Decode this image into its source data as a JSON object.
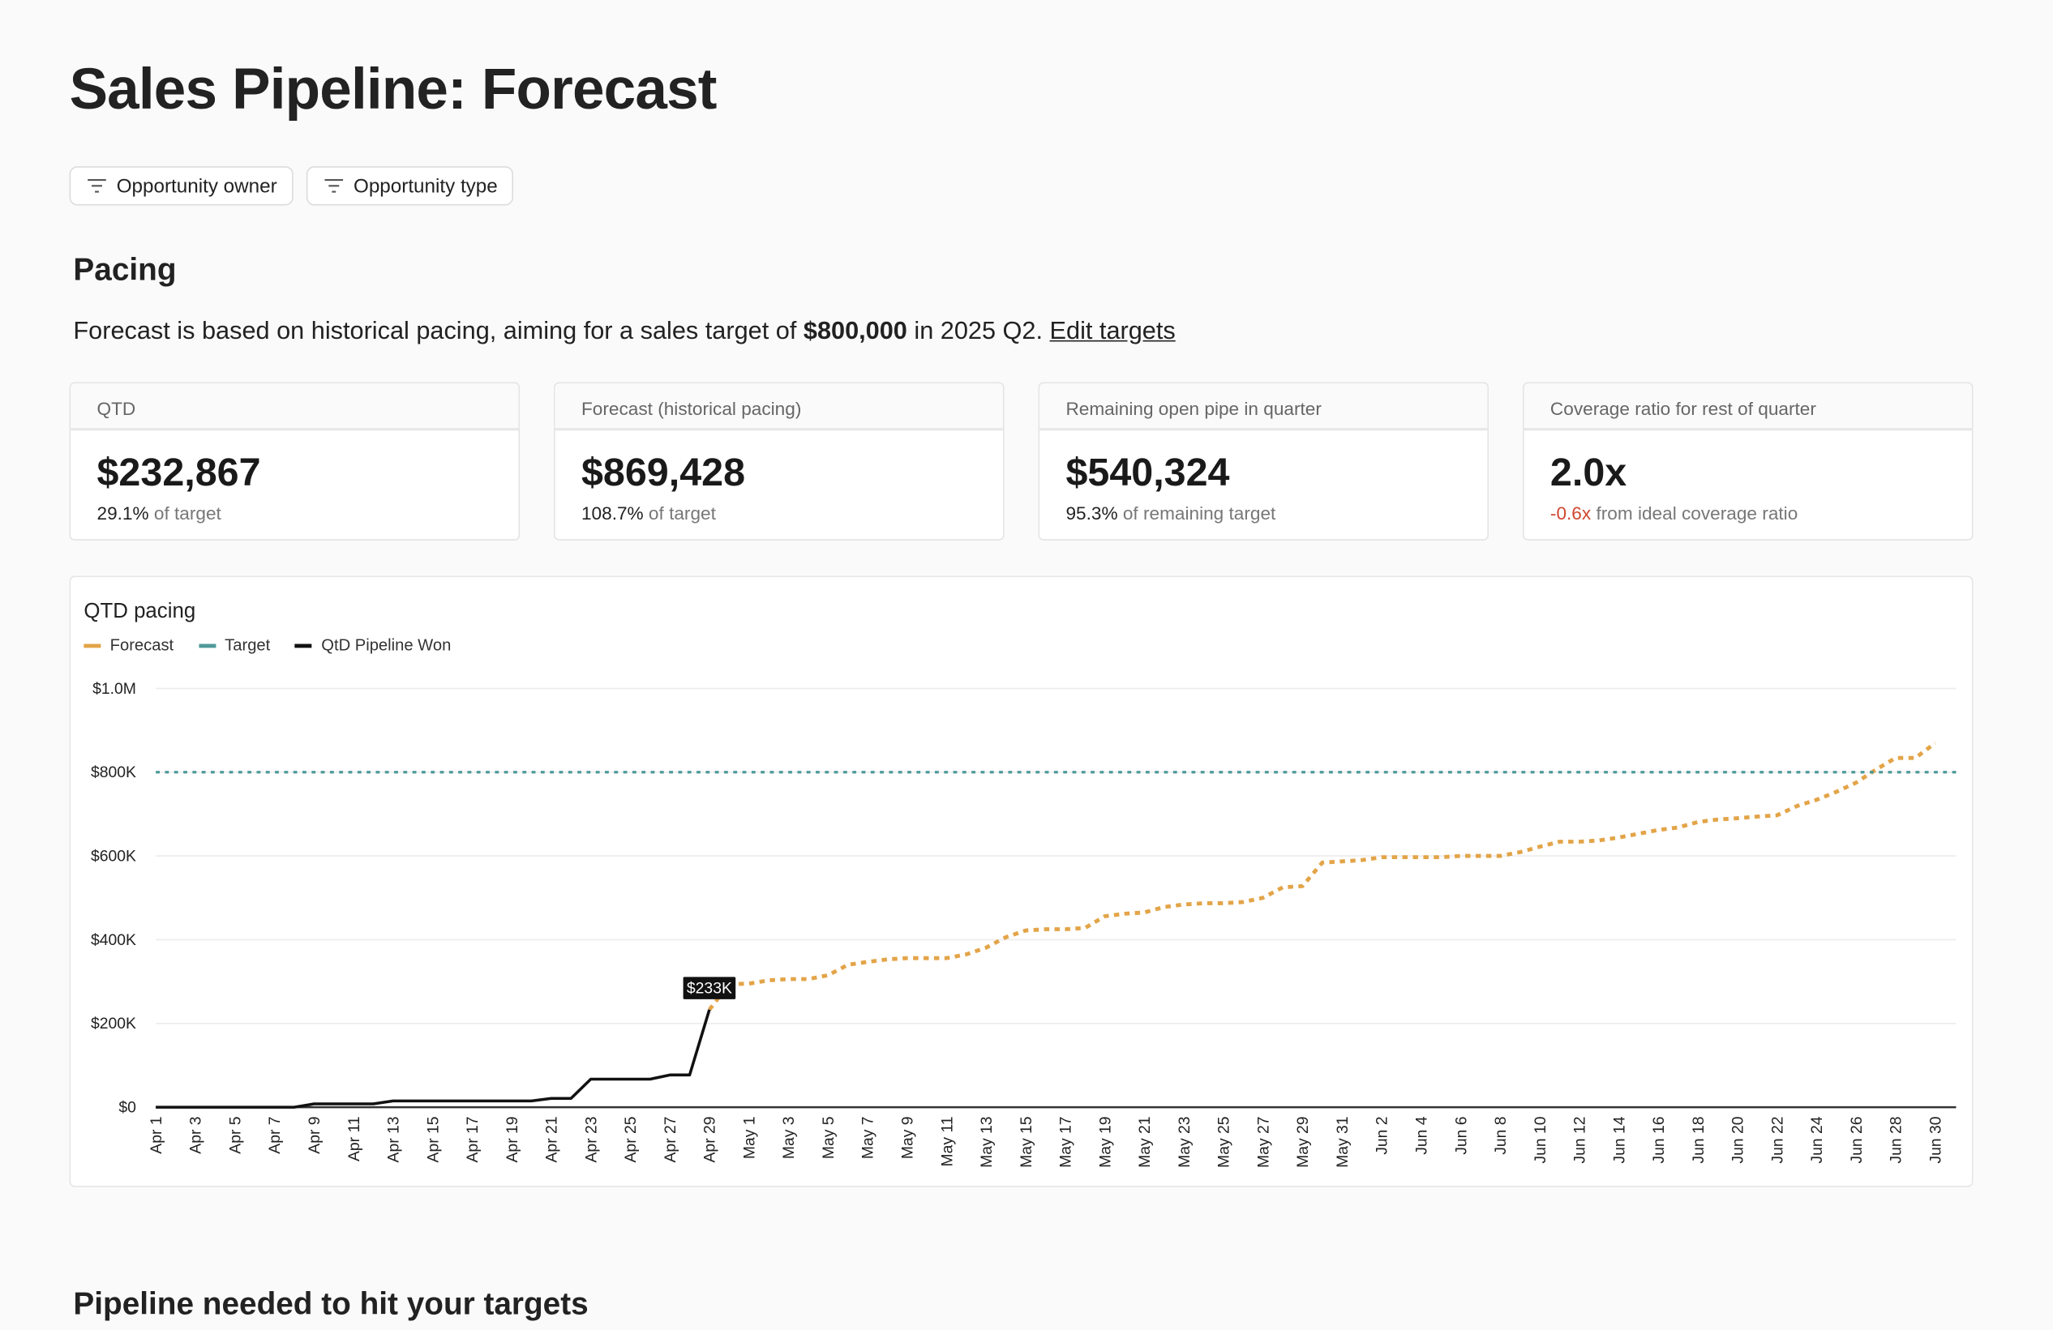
{
  "header": {
    "title": "Sales Pipeline: Forecast"
  },
  "filters": [
    {
      "label": "Opportunity owner",
      "icon": "filter-icon"
    },
    {
      "label": "Opportunity type",
      "icon": "filter-icon"
    }
  ],
  "pacing": {
    "heading": "Pacing",
    "description_prefix": "Forecast is based on historical pacing, aiming for a sales target of ",
    "target_amount": "$800,000",
    "description_middle": " in 2025 Q2. ",
    "edit_link": "Edit targets"
  },
  "kpis": [
    {
      "label": "QTD",
      "value": "$232,867",
      "sub_value": "29.1%",
      "sub_text": " of target",
      "sub_color": "#222222"
    },
    {
      "label": "Forecast (historical pacing)",
      "value": "$869,428",
      "sub_value": "108.7%",
      "sub_text": " of target",
      "sub_color": "#222222"
    },
    {
      "label": "Remaining open pipe in quarter",
      "value": "$540,324",
      "sub_value": "95.3%",
      "sub_text": " of remaining target",
      "sub_color": "#222222"
    },
    {
      "label": "Coverage ratio for rest of quarter",
      "value": "2.0x",
      "sub_value": "-0.6x",
      "sub_text": " from ideal coverage ratio",
      "sub_color": "#d0462e"
    }
  ],
  "next_section": {
    "heading": "Pipeline needed to hit your targets"
  },
  "chart_data": {
    "type": "line",
    "title": "QTD pacing",
    "xlabel": "",
    "ylabel": "",
    "ylim": [
      0,
      1000000
    ],
    "y_ticks": [
      {
        "value": 0,
        "label": "$0"
      },
      {
        "value": 200000,
        "label": "$200K"
      },
      {
        "value": 400000,
        "label": "$400K"
      },
      {
        "value": 600000,
        "label": "$600K"
      },
      {
        "value": 800000,
        "label": "$800K"
      },
      {
        "value": 1000000,
        "label": "$1.0M"
      }
    ],
    "x_ticks": [
      "Apr 1",
      "Apr 3",
      "Apr 5",
      "Apr 7",
      "Apr 9",
      "Apr 11",
      "Apr 13",
      "Apr 15",
      "Apr 17",
      "Apr 19",
      "Apr 21",
      "Apr 23",
      "Apr 25",
      "Apr 27",
      "Apr 29",
      "May 1",
      "May 3",
      "May 5",
      "May 7",
      "May 9",
      "May 11",
      "May 13",
      "May 15",
      "May 17",
      "May 19",
      "May 21",
      "May 23",
      "May 25",
      "May 27",
      "May 29",
      "May 31",
      "Jun 2",
      "Jun 4",
      "Jun 6",
      "Jun 8",
      "Jun 10",
      "Jun 12",
      "Jun 14",
      "Jun 16",
      "Jun 18",
      "Jun 20",
      "Jun 22",
      "Jun 24",
      "Jun 26",
      "Jun 28",
      "Jun 30"
    ],
    "grid": true,
    "legend_position": "top-left",
    "series": [
      {
        "name": "Forecast",
        "color": "#e3a448",
        "style": "dotted",
        "x_start": "Apr 29",
        "values": [
          232867,
          294000,
          295000,
          303000,
          306000,
          306000,
          315000,
          340000,
          347000,
          353000,
          356000,
          356000,
          356000,
          365000,
          381000,
          406000,
          422000,
          425000,
          425000,
          428000,
          456000,
          462000,
          465000,
          478000,
          484000,
          487000,
          487000,
          490000,
          500000,
          525000,
          528000,
          584000,
          587000,
          590000,
          597000,
          597000,
          597000,
          597000,
          600000,
          600000,
          600000,
          609000,
          622000,
          634000,
          634000,
          637000,
          644000,
          653000,
          662000,
          668000,
          681000,
          687000,
          690000,
          694000,
          697000,
          719000,
          734000,
          753000,
          775000,
          806000,
          834000,
          834000,
          869428
        ]
      },
      {
        "name": "Target",
        "color": "#4e9a9a",
        "style": "dashed",
        "x_start": "Apr 1",
        "x_end": "Jun 30",
        "values": [
          800000,
          800000
        ]
      },
      {
        "name": "QtD Pipeline Won",
        "color": "#111111",
        "style": "solid",
        "x_start": "Apr 1",
        "values": [
          0,
          0,
          0,
          0,
          0,
          0,
          0,
          0,
          8000,
          8000,
          8000,
          8000,
          15000,
          15000,
          15000,
          15000,
          15000,
          15000,
          15000,
          15000,
          21000,
          21000,
          67000,
          67000,
          67000,
          67000,
          77000,
          77000,
          232867
        ]
      }
    ],
    "annotations": [
      {
        "x": "Apr 29",
        "value": 232867,
        "label": "$233K"
      }
    ]
  }
}
